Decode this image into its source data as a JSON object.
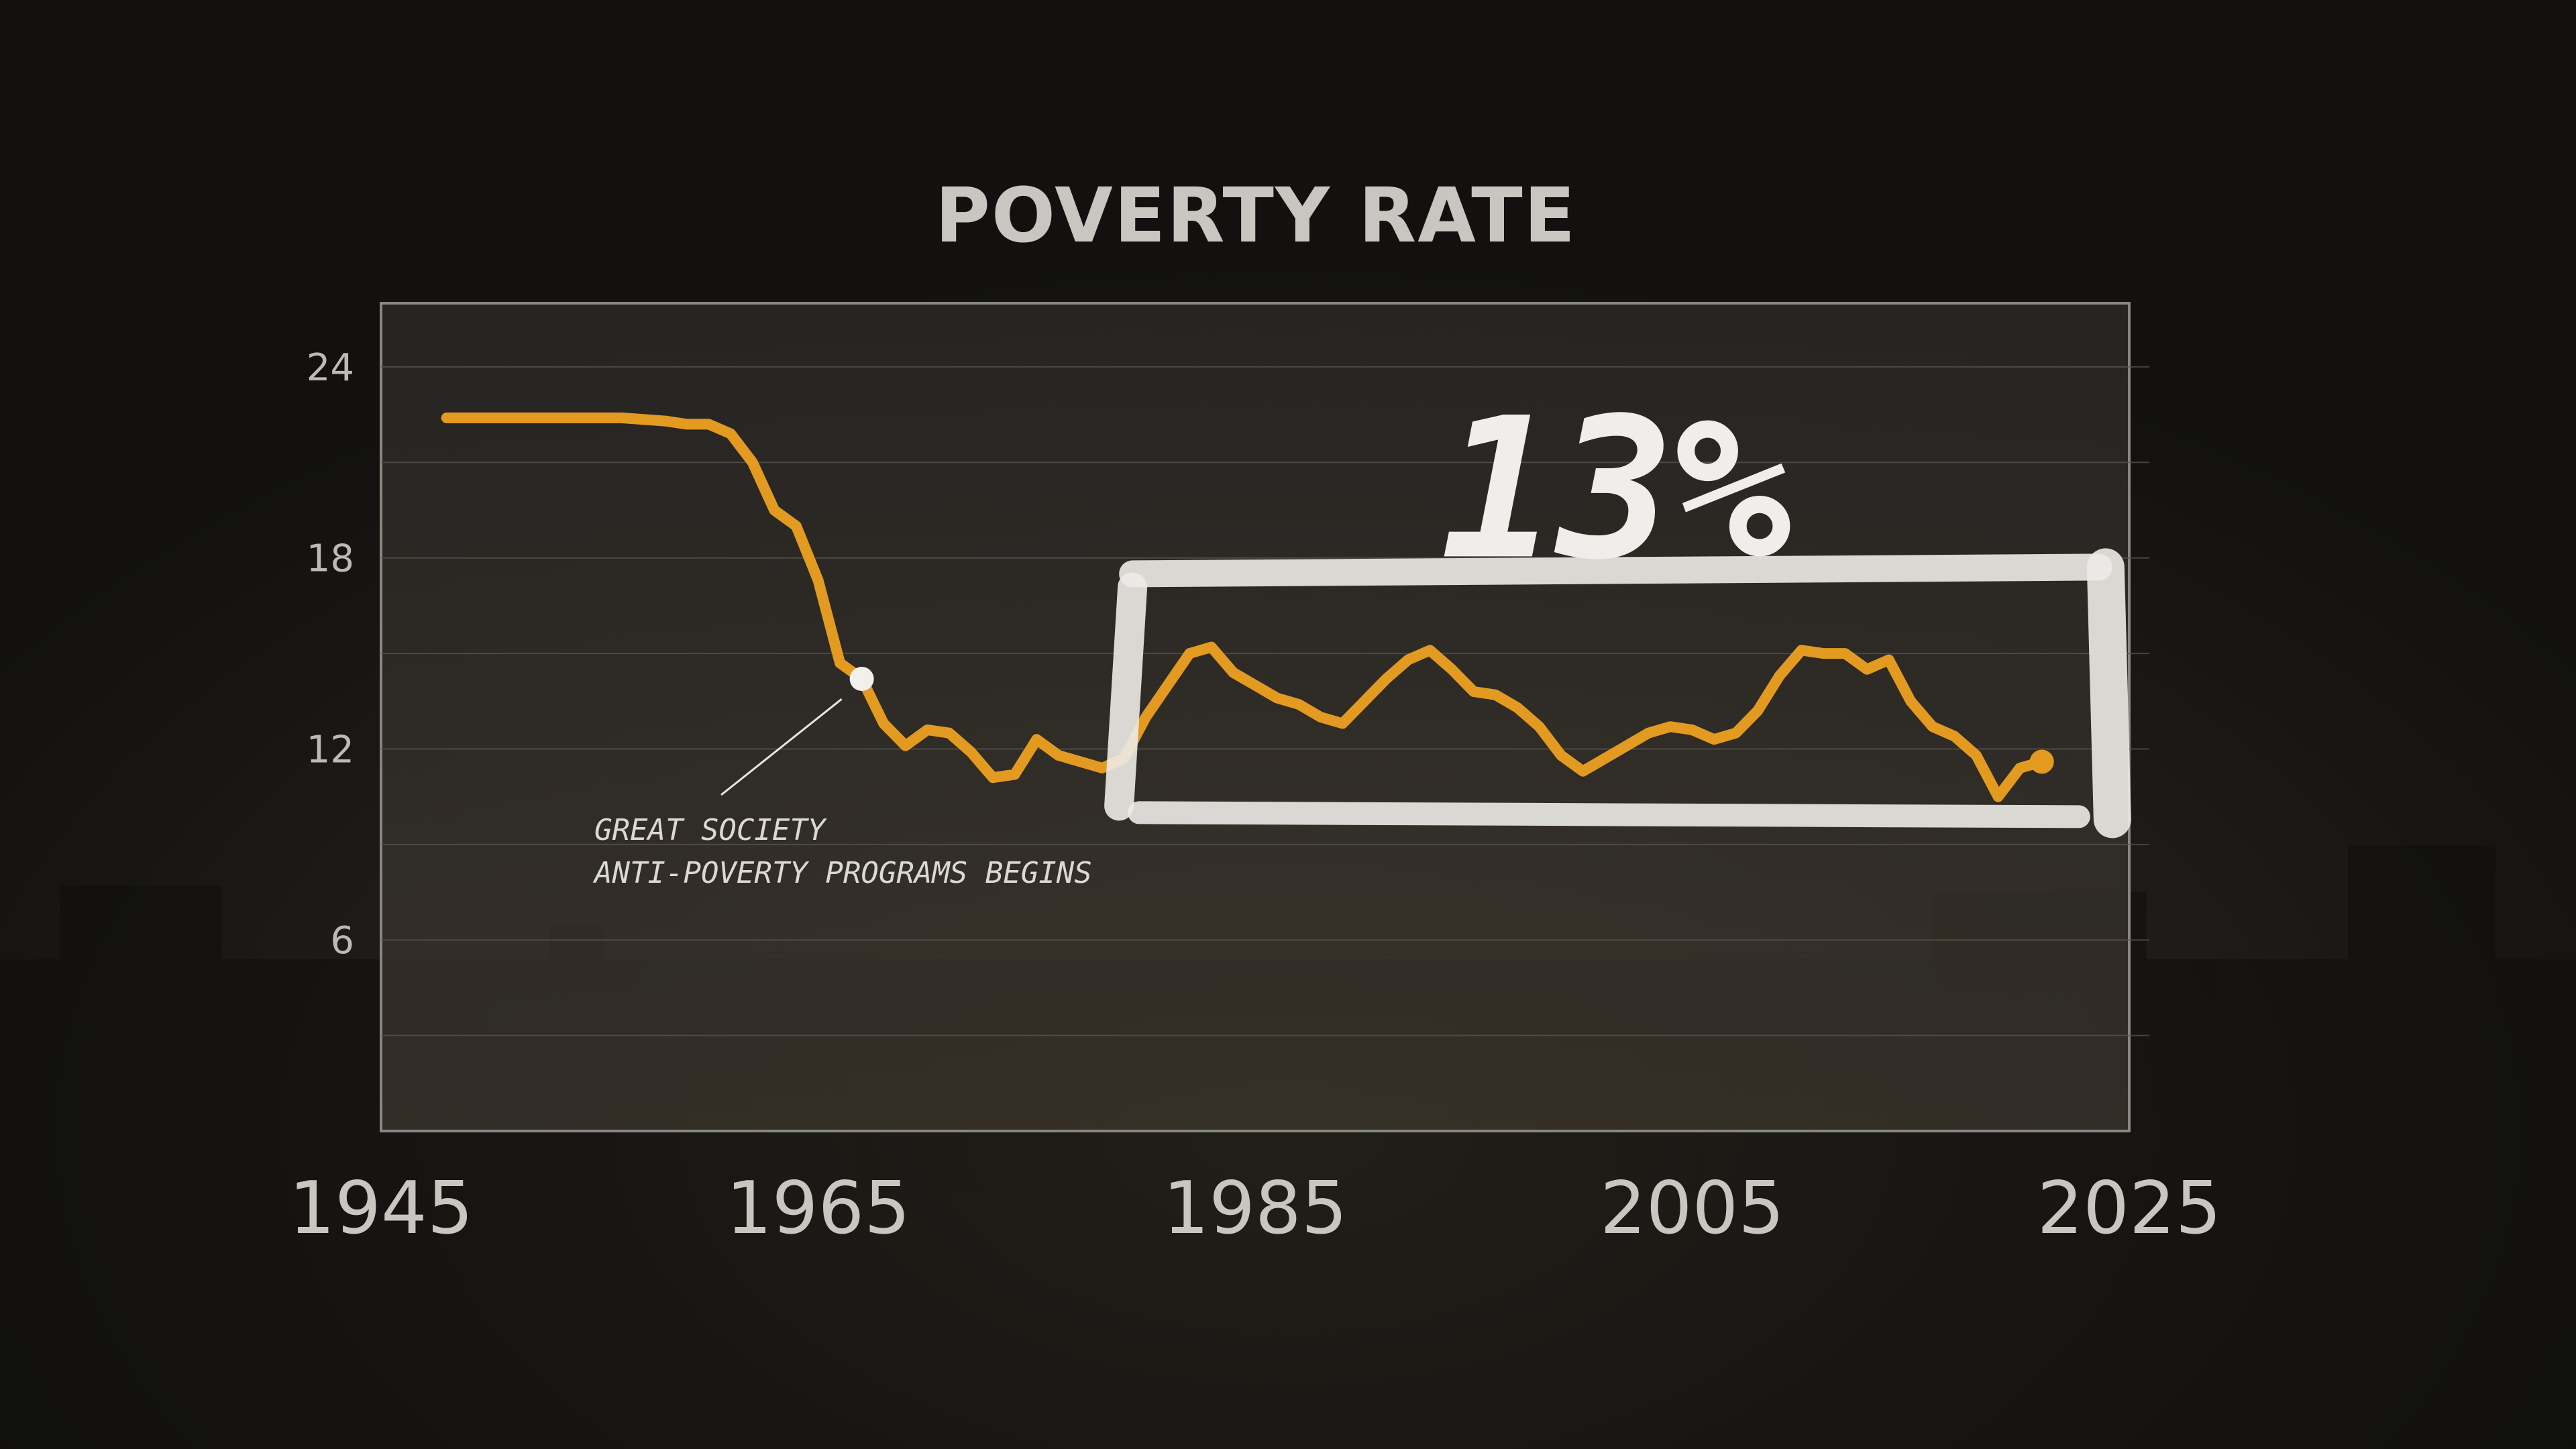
{
  "chart_data": {
    "type": "line",
    "title": "POVERTY RATE",
    "xlabel": "",
    "ylabel": "",
    "xlim": [
      1945,
      2025
    ],
    "ylim": [
      0,
      26
    ],
    "x_ticks": [
      1945,
      1965,
      1985,
      2005,
      2025
    ],
    "y_ticks": [
      6,
      12,
      18,
      24
    ],
    "grid": true,
    "series": [
      {
        "color": "#e39a21",
        "x": [
          1948,
          1950,
          1952,
          1954,
          1956,
          1958,
          1959,
          1960,
          1961,
          1962,
          1963,
          1964,
          1965,
          1966,
          1967,
          1968,
          1969,
          1970,
          1971,
          1972,
          1973,
          1974,
          1975,
          1976,
          1977,
          1978,
          1979,
          1980,
          1981,
          1982,
          1983,
          1984,
          1985,
          1986,
          1987,
          1988,
          1989,
          1990,
          1991,
          1992,
          1993,
          1994,
          1995,
          1996,
          1997,
          1998,
          1999,
          2000,
          2001,
          2002,
          2003,
          2004,
          2005,
          2006,
          2007,
          2008,
          2009,
          2010,
          2011,
          2012,
          2013,
          2014,
          2015,
          2016,
          2017,
          2018,
          2019,
          2020,
          2021
        ],
        "values": [
          22.4,
          22.4,
          22.4,
          22.4,
          22.4,
          22.3,
          22.2,
          22.2,
          21.9,
          21.0,
          19.5,
          19.0,
          17.3,
          14.7,
          14.2,
          12.8,
          12.1,
          12.6,
          12.5,
          11.9,
          11.1,
          11.2,
          12.3,
          11.8,
          11.6,
          11.4,
          11.7,
          13.0,
          14.0,
          15.0,
          15.2,
          14.4,
          14.0,
          13.6,
          13.4,
          13.0,
          12.8,
          13.5,
          14.2,
          14.8,
          15.1,
          14.5,
          13.8,
          13.7,
          13.3,
          12.7,
          11.8,
          11.3,
          11.7,
          12.1,
          12.5,
          12.7,
          12.6,
          12.3,
          12.5,
          13.2,
          14.3,
          15.1,
          15.0,
          15.0,
          14.5,
          14.8,
          13.5,
          12.7,
          12.4,
          11.8,
          10.5,
          11.4,
          11.6
        ]
      }
    ],
    "annotations": [
      {
        "x": 1967,
        "y": 14.2,
        "lines": [
          "GREAT SOCIETY",
          "ANTI-POVERTY PROGRAMS BEGINS"
        ]
      }
    ],
    "callout": {
      "label": "13%",
      "x_range": [
        1980,
        2023
      ],
      "y_range": [
        10.0,
        17.5
      ]
    }
  }
}
